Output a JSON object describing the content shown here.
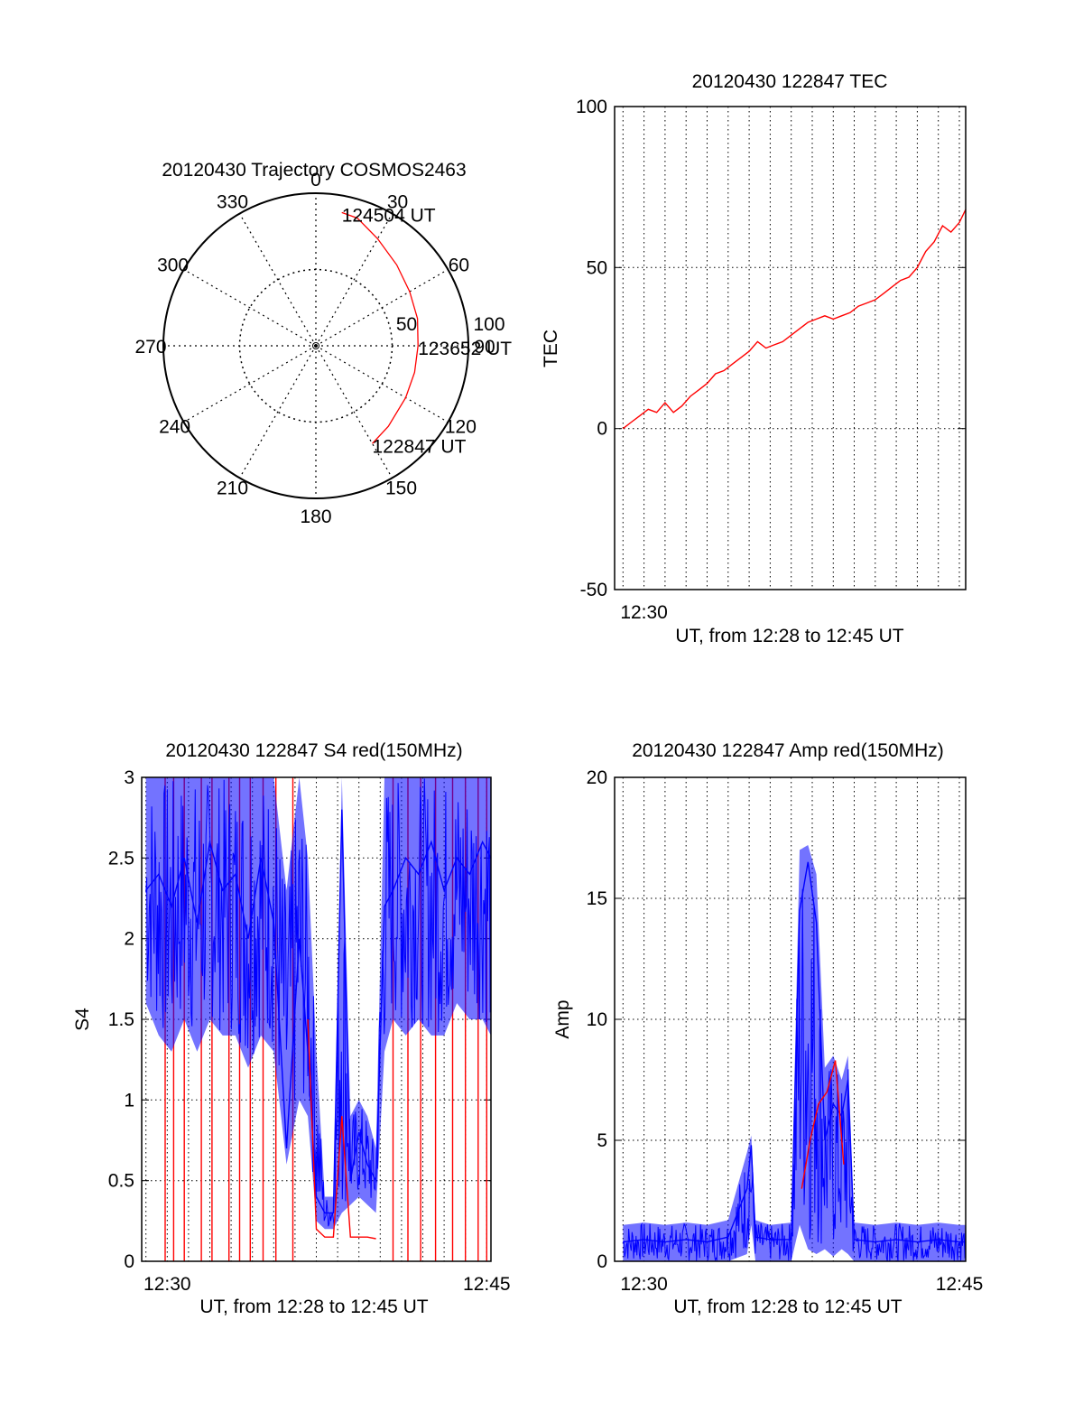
{
  "chart_data": [
    {
      "id": "polar",
      "type": "polar-trajectory",
      "title": "20120430 Trajectory COSMOS2463",
      "azimuth_labels": [
        "0",
        "30",
        "60",
        "90",
        "120",
        "150",
        "180",
        "210",
        "240",
        "270",
        "300",
        "330"
      ],
      "elevation_ring_labels": [
        "50",
        "100"
      ],
      "elevation_rings": [
        50,
        100
      ],
      "outer_ring_elevation": 100,
      "trajectory": [
        {
          "az": 150,
          "r": 74
        },
        {
          "az": 138,
          "r": 71
        },
        {
          "az": 120,
          "r": 68
        },
        {
          "az": 105,
          "r": 67
        },
        {
          "az": 90,
          "r": 67
        },
        {
          "az": 75,
          "r": 69
        },
        {
          "az": 60,
          "r": 71
        },
        {
          "az": 45,
          "r": 75
        },
        {
          "az": 30,
          "r": 81
        },
        {
          "az": 18,
          "r": 88
        },
        {
          "az": 11,
          "r": 89
        }
      ],
      "point_labels": [
        {
          "text": "124504 UT",
          "az": 11,
          "r": 89
        },
        {
          "text": "123652 UT",
          "az": 90,
          "r": 67
        },
        {
          "text": "122847 UT",
          "az": 150,
          "r": 74
        }
      ],
      "series_color": "#ff0000"
    },
    {
      "id": "tec",
      "type": "line",
      "title": "20120430 122847 TEC",
      "ylabel": "TEC",
      "xlabel": "UT, from 12:28 to 12:45 UT",
      "xlim": [
        28.6,
        45.3
      ],
      "ylim": [
        -50,
        100
      ],
      "yticks": [
        -50,
        0,
        50,
        100
      ],
      "xtick_labels": [
        {
          "x": 30,
          "label": "12:30"
        }
      ],
      "grid": true,
      "series": [
        {
          "color": "#ff0000",
          "x": [
            29.0,
            29.4,
            29.8,
            30.2,
            30.6,
            31.0,
            31.4,
            31.8,
            32.2,
            32.6,
            33.0,
            33.4,
            33.8,
            34.2,
            34.6,
            35.0,
            35.4,
            35.8,
            36.2,
            36.6,
            37.0,
            37.4,
            37.8,
            38.2,
            38.6,
            39.0,
            39.4,
            39.8,
            40.2,
            40.6,
            41.0,
            41.4,
            41.8,
            42.2,
            42.6,
            43.0,
            43.4,
            43.8,
            44.2,
            44.6,
            45.0,
            45.3
          ],
          "y": [
            0,
            2,
            4,
            6,
            5,
            8,
            5,
            7,
            10,
            12,
            14,
            17,
            18,
            20,
            22,
            24,
            27,
            25,
            26,
            27,
            29,
            31,
            33,
            34,
            35,
            34,
            35,
            36,
            38,
            39,
            40,
            42,
            44,
            46,
            47,
            50,
            55,
            58,
            63,
            61,
            64,
            68
          ]
        }
      ]
    },
    {
      "id": "s4",
      "type": "line",
      "title": "20120430 122847 S4 red(150MHz)",
      "ylabel": "S4",
      "xlabel": "UT, from 12:28 to 12:45 UT",
      "xlim": [
        28.8,
        45.2
      ],
      "ylim": [
        0,
        3
      ],
      "yticks": [
        0,
        0.5,
        1,
        1.5,
        2,
        2.5,
        3
      ],
      "xtick_labels": [
        {
          "x": 30,
          "label": "12:30"
        },
        {
          "x": 45,
          "label": "12:45"
        }
      ],
      "grid": true,
      "series": [
        {
          "color": "#0000ff",
          "x": [
            29.0,
            29.6,
            30.2,
            30.8,
            31.4,
            32.0,
            32.6,
            33.2,
            33.8,
            34.4,
            35.0,
            35.6,
            36.2,
            36.6,
            37.0,
            37.4,
            37.8,
            38.2,
            38.6,
            39.0,
            39.4,
            39.8,
            40.2,
            40.6,
            41.2,
            41.8,
            42.4,
            43.0,
            43.6,
            44.2,
            44.8,
            45.2
          ],
          "y": [
            2.3,
            2.4,
            2.2,
            2.5,
            2.1,
            2.6,
            2.3,
            2.4,
            2.0,
            2.5,
            2.1,
            0.7,
            2.0,
            1.3,
            0.4,
            0.3,
            0.3,
            2.8,
            0.5,
            0.8,
            0.6,
            0.5,
            2.2,
            2.3,
            2.5,
            2.4,
            2.6,
            2.3,
            2.5,
            2.4,
            2.6,
            2.5
          ],
          "min": [
            1.6,
            1.4,
            1.3,
            1.5,
            1.3,
            1.5,
            1.4,
            1.4,
            1.2,
            1.4,
            1.3,
            0.6,
            1.0,
            0.9,
            0.25,
            0.2,
            0.2,
            0.3,
            0.35,
            0.4,
            0.35,
            0.3,
            1.3,
            1.5,
            1.4,
            1.5,
            1.4,
            1.4,
            1.6,
            1.5,
            1.5,
            1.4
          ],
          "max": [
            3.0,
            3.0,
            3.0,
            3.0,
            3.0,
            3.0,
            3.0,
            3.0,
            3.0,
            3.0,
            3.0,
            2.3,
            3.0,
            2.5,
            1.3,
            0.4,
            0.4,
            3.0,
            0.9,
            1.0,
            0.9,
            0.7,
            3.0,
            3.0,
            3.0,
            3.0,
            3.0,
            3.0,
            3.0,
            3.0,
            3.0,
            3.0
          ]
        },
        {
          "color": "#ff0000",
          "x": [
            36.6,
            37.0,
            37.4,
            37.8,
            38.2,
            38.6,
            39.0,
            39.4,
            39.8
          ],
          "y": [
            1.5,
            0.2,
            0.15,
            0.15,
            0.9,
            0.15,
            0.15,
            0.15,
            0.14
          ]
        }
      ],
      "red_spikes_x": [
        29.9,
        30.3,
        30.8,
        31.6,
        32.1,
        32.9,
        33.4,
        33.9,
        34.5,
        35.1,
        35.9,
        40.6,
        41.3,
        41.9,
        42.6,
        43.4,
        44.0,
        44.6,
        45.0
      ]
    },
    {
      "id": "amp",
      "type": "line",
      "title": "20120430 122847 Amp red(150MHz)",
      "ylabel": "Amp",
      "xlabel": "UT, from 12:28 to 12:45 UT",
      "xlim": [
        28.6,
        45.3
      ],
      "ylim": [
        0,
        20
      ],
      "yticks": [
        0,
        5,
        10,
        15,
        20
      ],
      "xtick_labels": [
        {
          "x": 30,
          "label": "12:30"
        },
        {
          "x": 45,
          "label": "12:45"
        }
      ],
      "grid": true,
      "series": [
        {
          "color": "#0000ff",
          "x": [
            29.0,
            30.0,
            31.0,
            32.0,
            33.0,
            34.0,
            34.9,
            35.1,
            35.3,
            36.0,
            37.0,
            37.4,
            37.8,
            38.2,
            38.6,
            39.0,
            39.4,
            39.7,
            40.0,
            41.0,
            42.0,
            43.0,
            44.0,
            45.0,
            45.3
          ],
          "y": [
            0.8,
            0.9,
            0.8,
            0.9,
            0.8,
            1.0,
            3.0,
            4.8,
            1.0,
            0.9,
            0.9,
            14.5,
            16.5,
            14.0,
            5.0,
            6.5,
            6.0,
            7.5,
            0.9,
            0.8,
            0.9,
            0.8,
            0.9,
            0.8,
            0.8
          ],
          "min": [
            0.0,
            0.0,
            0.0,
            0.0,
            0.0,
            0.0,
            0.3,
            1.5,
            0.0,
            0.0,
            0.0,
            1.5,
            0.5,
            0.3,
            0.5,
            0.2,
            0.5,
            0.3,
            0.0,
            0.0,
            0.0,
            0.0,
            0.0,
            0.0,
            0.0
          ],
          "max": [
            1.5,
            1.6,
            1.5,
            1.6,
            1.5,
            1.7,
            4.5,
            5.2,
            1.7,
            1.5,
            1.6,
            17.0,
            17.2,
            16.0,
            8.0,
            8.5,
            7.5,
            8.5,
            1.6,
            1.5,
            1.6,
            1.5,
            1.6,
            1.5,
            1.5
          ]
        },
        {
          "color": "#ff0000",
          "x": [
            37.5,
            37.9,
            38.3,
            38.7,
            39.1,
            39.5
          ],
          "y": [
            3.0,
            5.0,
            6.5,
            7.0,
            8.3,
            4.0
          ]
        }
      ]
    }
  ]
}
